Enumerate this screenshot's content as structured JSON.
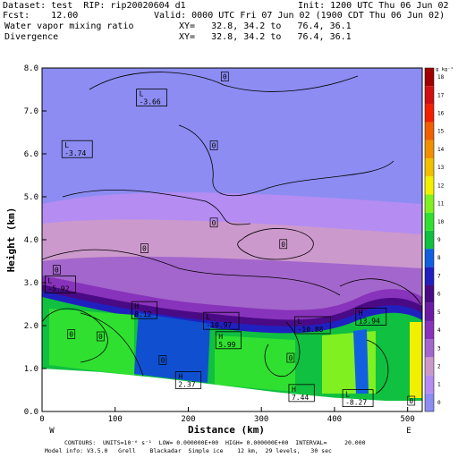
{
  "header": {
    "dataset_line": "Dataset: test  RIP: rip20020604 d1",
    "init_line": "Init: 1200 UTC Thu 06 Jun 02",
    "fcst_line": "Fcst:    12.00",
    "valid_line": "Valid: 0000 UTC Fri 07 Jun 02 (1900 CDT Thu 06 Jun 02)",
    "field1_name": "Water vapor mixing ratio",
    "field1_xy": "XY=   32.8, 34.2 to   76.4, 36.1",
    "field2_name": "Divergence",
    "field2_xy": "XY=   32.8, 34.2 to   76.4, 36.1"
  },
  "footer": {
    "contours_line": "CONTOURS:  UNITS=10⁻⁶ s⁻¹  LOW= 0.000000E+00  HIGH= 0.000000E+00  INTERVAL=     20.000",
    "model_line": "Model info: V3.5.0   Grell    Blackadar  Simple ice    12 km,  29 levels,   30 sec"
  },
  "colors": {
    "bar": [
      "#8c8cf2",
      "#b48cf2",
      "#cc99cc",
      "#a366cc",
      "#8833bb",
      "#6a1aa5",
      "#4a0a85",
      "#2020c0",
      "#1060e0",
      "#10c040",
      "#30e030",
      "#80f020",
      "#f0f000",
      "#f0c000",
      "#f09000",
      "#f06000",
      "#f02000",
      "#d01010",
      "#a00000"
    ],
    "ground": "#ffffff"
  },
  "chart_data": {
    "type": "heatmap",
    "xlabel": "Distance (km)",
    "ylabel": "Height (km)",
    "xlim": [
      0,
      520
    ],
    "ylim": [
      0,
      8
    ],
    "x_ticks": [
      0,
      100,
      200,
      300,
      400,
      500
    ],
    "y_ticks": [
      "0.0",
      "1.0",
      "2.0",
      "3.0",
      "4.0",
      "5.0",
      "6.0",
      "7.0",
      "8.0"
    ],
    "left_end_label": "W",
    "right_end_label": "E",
    "colorbar": {
      "unit_label": "g kg⁻¹",
      "ticks": [
        "0",
        "1",
        "2",
        "3",
        "4",
        "5",
        "6",
        "7",
        "8",
        "9",
        "10",
        "11",
        "12",
        "13",
        "14",
        "15",
        "16",
        "17",
        "18"
      ]
    },
    "terrain_km": [
      [
        0,
        1.0
      ],
      [
        80,
        0.92
      ],
      [
        160,
        0.78
      ],
      [
        240,
        0.62
      ],
      [
        320,
        0.45
      ],
      [
        400,
        0.32
      ],
      [
        470,
        0.25
      ],
      [
        520,
        0.25
      ]
    ],
    "extrema": [
      {
        "type": "L",
        "value": "-3.66",
        "x": 150,
        "y": 7.3
      },
      {
        "type": "L",
        "value": "-3.74",
        "x": 48,
        "y": 6.1
      },
      {
        "type": "L",
        "value": "-5.92",
        "x": 25,
        "y": 2.95
      },
      {
        "type": "H",
        "value": "8.12",
        "x": 140,
        "y": 2.35
      },
      {
        "type": "L",
        "value": "-10.97",
        "x": 245,
        "y": 2.1
      },
      {
        "type": "H",
        "value": "5.99",
        "x": 255,
        "y": 1.65
      },
      {
        "type": "H",
        "value": "2.37",
        "x": 200,
        "y": 0.72
      },
      {
        "type": "L",
        "value": "-10.88",
        "x": 370,
        "y": 2.0
      },
      {
        "type": "H",
        "value": "13.94",
        "x": 450,
        "y": 2.2
      },
      {
        "type": "H",
        "value": "7.44",
        "x": 355,
        "y": 0.42
      },
      {
        "type": "L",
        "value": "-8.27",
        "x": 432,
        "y": 0.3
      }
    ],
    "zero_labels": [
      {
        "value": "0",
        "x": 250,
        "y": 7.8
      },
      {
        "value": "0",
        "x": 235,
        "y": 6.2
      },
      {
        "value": "0",
        "x": 235,
        "y": 4.4
      },
      {
        "value": "0",
        "x": 330,
        "y": 3.9
      },
      {
        "value": "0",
        "x": 140,
        "y": 3.8
      },
      {
        "value": "0",
        "x": 20,
        "y": 3.3
      },
      {
        "value": "0",
        "x": 40,
        "y": 1.8
      },
      {
        "value": "0",
        "x": 80,
        "y": 1.75
      },
      {
        "value": "0",
        "x": 165,
        "y": 1.2
      },
      {
        "value": "0",
        "x": 340,
        "y": 1.25
      },
      {
        "value": "0",
        "x": 505,
        "y": 0.25
      }
    ]
  }
}
